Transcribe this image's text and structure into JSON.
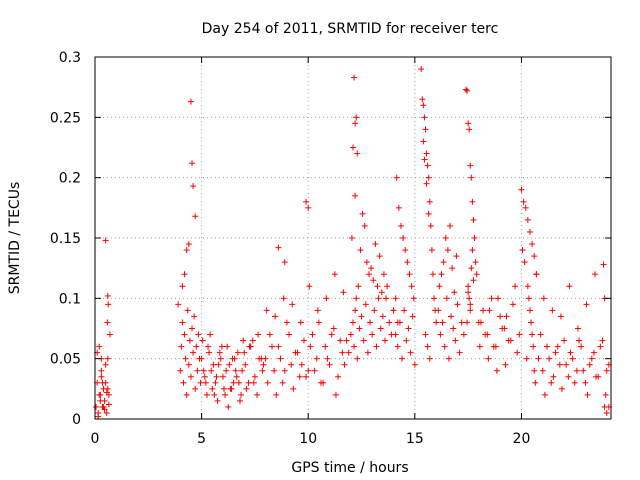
{
  "chart_data": {
    "type": "scatter",
    "title": "Day 254 of 2011, SRMTID for receiver terc",
    "xlabel": "GPS time / hours",
    "ylabel": "SRMTID / TECUs",
    "xlim": [
      0,
      24.2
    ],
    "ylim": [
      0,
      0.3
    ],
    "xticks": [
      0,
      5,
      10,
      15,
      20
    ],
    "xtick_labels": [
      "0",
      "5",
      "10",
      "15",
      "20"
    ],
    "yticks": [
      0,
      0.05,
      0.1,
      0.15,
      0.2,
      0.25,
      0.3
    ],
    "ytick_labels": [
      "0",
      "0.05",
      "0.1",
      "0.15",
      "0.2",
      "0.25",
      "0.3"
    ],
    "grid": true,
    "marker": "plus",
    "color": "#ff0000",
    "series": [
      {
        "x": [
          0.05,
          0.1,
          0.15,
          0.2,
          0.25,
          0.3,
          0.35,
          0.4,
          0.45,
          0.5,
          0.55,
          0.6,
          0.65,
          0.7,
          0.1,
          0.2,
          0.3,
          0.4,
          0.5,
          0.6,
          0.15,
          0.25,
          0.35,
          0.45,
          0.55,
          0.65,
          0.3,
          0.5,
          0.6,
          0.62,
          0.58,
          3.9,
          4.0,
          4.05,
          4.1,
          4.15,
          4.2,
          4.25,
          4.3,
          4.35,
          4.4,
          4.45,
          4.5,
          4.55,
          4.6,
          4.65,
          4.7,
          4.75,
          4.8,
          4.85,
          4.9,
          4.95,
          4.5,
          4.55,
          4.6,
          4.7,
          4.4,
          4.3,
          4.2,
          4.1,
          5.0,
          5.2,
          5.4,
          5.6,
          5.8,
          6.0,
          6.2,
          6.4,
          6.6,
          6.8,
          7.0,
          7.2,
          7.4,
          7.6,
          7.8,
          5.1,
          5.3,
          5.5,
          5.7,
          5.9,
          6.1,
          6.3,
          6.5,
          6.7,
          6.9,
          7.1,
          7.3,
          7.5,
          7.7,
          7.9,
          5.05,
          5.25,
          5.45,
          5.65,
          5.85,
          6.05,
          6.25,
          6.45,
          6.65,
          6.85,
          7.05,
          7.25,
          7.45,
          7.65,
          7.85,
          5.15,
          5.35,
          5.55,
          5.75,
          5.95,
          6.15,
          6.35,
          6.55,
          6.75,
          6.95,
          8.0,
          8.2,
          8.4,
          8.6,
          8.8,
          9.0,
          9.2,
          9.4,
          9.6,
          9.8,
          10.0,
          10.2,
          10.4,
          10.6,
          10.8,
          11.0,
          11.2,
          11.4,
          11.6,
          11.8,
          8.1,
          8.3,
          8.5,
          8.7,
          8.9,
          9.1,
          9.3,
          9.5,
          9.7,
          9.9,
          10.1,
          10.3,
          10.5,
          10.7,
          10.9,
          11.1,
          11.3,
          11.5,
          11.7,
          11.9,
          8.05,
          8.45,
          8.85,
          9.25,
          9.65,
          10.05,
          10.45,
          10.85,
          11.25,
          11.65,
          8.6,
          8.9,
          9.9,
          10.0,
          12.0,
          12.1,
          12.15,
          12.2,
          12.25,
          12.3,
          12.35,
          12.4,
          12.5,
          12.6,
          12.7,
          12.8,
          12.9,
          13.0,
          13.1,
          13.2,
          13.3,
          13.4,
          13.5,
          13.6,
          13.7,
          13.8,
          13.9,
          14.0,
          12.15,
          12.2,
          12.25,
          12.1,
          12.3,
          12.2,
          12.05,
          12.45,
          12.55,
          12.65,
          12.75,
          12.85,
          12.95,
          13.05,
          13.15,
          13.25,
          13.35,
          13.45,
          13.55,
          13.65,
          14.1,
          14.2,
          14.3,
          14.4,
          14.5,
          14.6,
          14.7,
          14.8,
          14.9,
          15.0,
          14.15,
          14.25,
          14.35,
          14.45,
          14.55,
          14.65,
          14.75,
          14.85,
          14.95,
          14.0,
          14.1,
          14.2,
          15.3,
          15.35,
          15.4,
          15.45,
          15.5,
          15.55,
          15.6,
          15.65,
          15.7,
          15.75,
          15.8,
          15.85,
          15.9,
          15.95,
          16.0,
          15.5,
          15.6,
          15.7,
          15.4,
          15.45,
          15.55,
          15.65,
          16.1,
          16.2,
          16.3,
          16.4,
          16.5,
          16.6,
          16.7,
          16.8,
          16.9,
          17.0,
          17.1,
          17.2,
          17.3,
          16.15,
          16.25,
          16.35,
          16.45,
          16.55,
          16.65,
          16.75,
          16.85,
          16.95,
          17.4,
          17.45,
          17.5,
          17.55,
          17.6,
          17.65,
          17.7,
          17.75,
          17.8,
          17.85,
          17.9,
          17.5,
          17.55,
          17.6,
          17.45,
          17.7,
          17.65,
          17.75,
          17.5,
          17.6,
          18.0,
          18.2,
          18.4,
          18.6,
          18.8,
          19.0,
          19.2,
          19.4,
          19.6,
          19.8,
          18.1,
          18.3,
          18.5,
          18.7,
          18.9,
          19.1,
          19.3,
          19.5,
          19.7,
          19.9,
          18.05,
          18.45,
          18.85,
          19.25,
          20.0,
          20.1,
          20.2,
          20.3,
          20.4,
          20.5,
          20.6,
          20.7,
          20.3,
          20.35,
          20.4,
          20.45,
          20.5,
          20.55,
          20.25,
          20.6,
          20.65,
          20.15,
          20.05,
          20.7,
          20.8,
          21.0,
          21.2,
          21.4,
          21.6,
          21.8,
          22.0,
          22.2,
          22.4,
          22.6,
          22.8,
          23.0,
          23.2,
          23.4,
          23.6,
          23.8,
          24.0,
          20.9,
          21.1,
          21.3,
          21.5,
          21.7,
          21.9,
          22.1,
          22.3,
          22.5,
          22.7,
          22.9,
          23.1,
          23.3,
          23.5,
          23.7,
          23.9,
          24.1,
          21.05,
          21.45,
          21.85,
          22.25,
          22.65,
          23.05,
          23.45,
          23.85,
          23.9,
          24.0,
          24.1,
          23.95
        ],
        "y": [
          0.01,
          0.03,
          0.005,
          0.06,
          0.02,
          0.04,
          0.01,
          0.025,
          0.015,
          0.03,
          0.005,
          0.05,
          0.02,
          0.07,
          0.055,
          0.02,
          0.035,
          0.01,
          0.045,
          0.025,
          0.002,
          0.015,
          0.03,
          0.008,
          0.022,
          0.012,
          0.05,
          0.148,
          0.102,
          0.095,
          0.08,
          0.095,
          0.04,
          0.06,
          0.08,
          0.03,
          0.07,
          0.05,
          0.02,
          0.09,
          0.045,
          0.065,
          0.035,
          0.075,
          0.055,
          0.085,
          0.025,
          0.06,
          0.04,
          0.07,
          0.05,
          0.03,
          0.263,
          0.212,
          0.193,
          0.168,
          0.145,
          0.14,
          0.12,
          0.11,
          0.05,
          0.03,
          0.07,
          0.02,
          0.045,
          0.035,
          0.06,
          0.025,
          0.04,
          0.015,
          0.055,
          0.03,
          0.065,
          0.02,
          0.05,
          0.04,
          0.06,
          0.025,
          0.035,
          0.05,
          0.02,
          0.045,
          0.03,
          0.055,
          0.04,
          0.025,
          0.06,
          0.035,
          0.05,
          0.045,
          0.065,
          0.02,
          0.04,
          0.03,
          0.055,
          0.025,
          0.01,
          0.05,
          0.035,
          0.02,
          0.045,
          0.06,
          0.03,
          0.07,
          0.04,
          0.035,
          0.055,
          0.045,
          0.015,
          0.06,
          0.04,
          0.025,
          0.05,
          0.03,
          0.065,
          0.05,
          0.07,
          0.04,
          0.06,
          0.03,
          0.08,
          0.045,
          0.055,
          0.035,
          0.065,
          0.04,
          0.07,
          0.05,
          0.03,
          0.06,
          0.045,
          0.075,
          0.035,
          0.055,
          0.065,
          0.03,
          0.06,
          0.02,
          0.05,
          0.04,
          0.07,
          0.025,
          0.055,
          0.045,
          0.035,
          0.06,
          0.04,
          0.08,
          0.03,
          0.05,
          0.07,
          0.02,
          0.065,
          0.045,
          0.055,
          0.09,
          0.085,
          0.1,
          0.095,
          0.08,
          0.11,
          0.09,
          0.1,
          0.12,
          0.105,
          0.142,
          0.13,
          0.18,
          0.175,
          0.07,
          0.08,
          0.06,
          0.09,
          0.1,
          0.05,
          0.11,
          0.075,
          0.085,
          0.065,
          0.095,
          0.055,
          0.08,
          0.07,
          0.09,
          0.06,
          0.1,
          0.075,
          0.085,
          0.065,
          0.11,
          0.08,
          0.07,
          0.09,
          0.283,
          0.245,
          0.25,
          0.225,
          0.22,
          0.185,
          0.15,
          0.14,
          0.17,
          0.16,
          0.13,
          0.12,
          0.125,
          0.115,
          0.145,
          0.11,
          0.135,
          0.105,
          0.12,
          0.1,
          0.07,
          0.06,
          0.08,
          0.05,
          0.09,
          0.065,
          0.075,
          0.055,
          0.085,
          0.045,
          0.2,
          0.175,
          0.16,
          0.15,
          0.14,
          0.13,
          0.12,
          0.11,
          0.1,
          0.09,
          0.1,
          0.08,
          0.29,
          0.265,
          0.26,
          0.25,
          0.24,
          0.22,
          0.21,
          0.2,
          0.18,
          0.16,
          0.14,
          0.12,
          0.1,
          0.09,
          0.08,
          0.07,
          0.06,
          0.05,
          0.23,
          0.215,
          0.195,
          0.17,
          0.09,
          0.07,
          0.08,
          0.06,
          0.1,
          0.05,
          0.085,
          0.075,
          0.065,
          0.095,
          0.055,
          0.08,
          0.07,
          0.11,
          0.12,
          0.13,
          0.15,
          0.14,
          0.16,
          0.125,
          0.105,
          0.135,
          0.273,
          0.272,
          0.245,
          0.24,
          0.21,
          0.2,
          0.18,
          0.165,
          0.15,
          0.13,
          0.12,
          0.11,
          0.1,
          0.09,
          0.08,
          0.14,
          0.125,
          0.115,
          0.105,
          0.095,
          0.08,
          0.09,
          0.07,
          0.1,
          0.06,
          0.085,
          0.075,
          0.065,
          0.095,
          0.055,
          0.08,
          0.07,
          0.09,
          0.06,
          0.1,
          0.075,
          0.085,
          0.065,
          0.11,
          0.07,
          0.06,
          0.05,
          0.04,
          0.045,
          0.19,
          0.18,
          0.175,
          0.165,
          0.155,
          0.145,
          0.135,
          0.12,
          0.11,
          0.1,
          0.09,
          0.08,
          0.07,
          0.06,
          0.05,
          0.04,
          0.03,
          0.13,
          0.14,
          0.12,
          0.05,
          0.04,
          0.06,
          0.03,
          0.055,
          0.045,
          0.065,
          0.035,
          0.05,
          0.04,
          0.06,
          0.03,
          0.045,
          0.055,
          0.035,
          0.065,
          0.04,
          0.07,
          0.02,
          0.05,
          0.035,
          0.06,
          0.025,
          0.045,
          0.055,
          0.03,
          0.065,
          0.04,
          0.02,
          0.05,
          0.035,
          0.06,
          0.01,
          0.045,
          0.1,
          0.09,
          0.085,
          0.11,
          0.075,
          0.095,
          0.12,
          0.128,
          0.1,
          0.005,
          0.01,
          0.02
        ]
      }
    ]
  }
}
